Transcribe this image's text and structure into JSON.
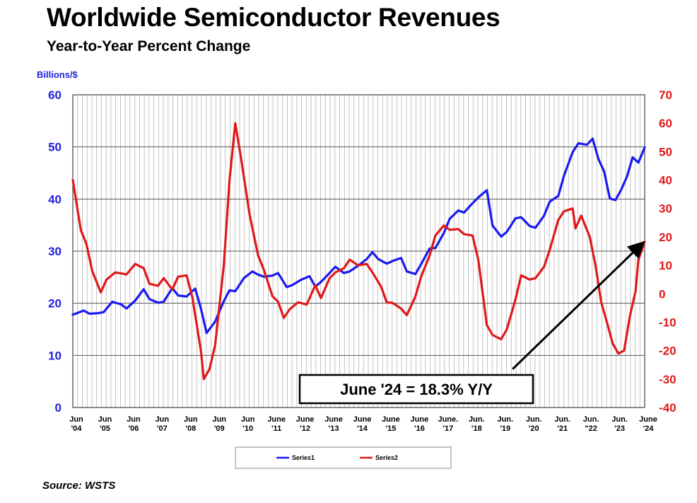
{
  "header": {
    "title": "Worldwide Semiconductor Revenues",
    "subtitle": "Year-to-Year Percent Change"
  },
  "footer": {
    "source": "Source: WSTS"
  },
  "chart_data": {
    "type": "line",
    "title": "Worldwide Semiconductor Revenues",
    "subtitle": "Year-to-Year Percent Change",
    "y_left_label": "Billions/$",
    "y_left_lim": [
      0,
      60
    ],
    "y_left_ticks": [
      0,
      10,
      20,
      30,
      40,
      50,
      60
    ],
    "y_right_lim": [
      -40,
      70
    ],
    "y_right_ticks": [
      -40,
      -30,
      -20,
      -10,
      0,
      10,
      20,
      30,
      40,
      50,
      60,
      70
    ],
    "x_lim": [
      2004.42,
      2024.42
    ],
    "x_tick_labels": [
      {
        "t": 2004.42,
        "top": "Jun",
        "bottom": "'04"
      },
      {
        "t": 2005.42,
        "top": "Jun",
        "bottom": "'05"
      },
      {
        "t": 2006.42,
        "top": "Jun",
        "bottom": "'06"
      },
      {
        "t": 2007.42,
        "top": "Jun",
        "bottom": "'07"
      },
      {
        "t": 2008.42,
        "top": "Jun",
        "bottom": "'08"
      },
      {
        "t": 2009.42,
        "top": "Jun",
        "bottom": "'09"
      },
      {
        "t": 2010.42,
        "top": "Jun",
        "bottom": "'10"
      },
      {
        "t": 2011.42,
        "top": "June",
        "bottom": "'11"
      },
      {
        "t": 2012.42,
        "top": "June",
        "bottom": "'12"
      },
      {
        "t": 2013.42,
        "top": "June",
        "bottom": "'13"
      },
      {
        "t": 2014.42,
        "top": "June",
        "bottom": "'14"
      },
      {
        "t": 2015.42,
        "top": "June",
        "bottom": "'15"
      },
      {
        "t": 2016.42,
        "top": "June",
        "bottom": "'16"
      },
      {
        "t": 2017.42,
        "top": "June.",
        "bottom": "'17"
      },
      {
        "t": 2018.42,
        "top": "Jun.",
        "bottom": "'18"
      },
      {
        "t": 2019.42,
        "top": "Jun.",
        "bottom": "'19"
      },
      {
        "t": 2020.42,
        "top": "Jun.",
        "bottom": "'20"
      },
      {
        "t": 2021.42,
        "top": "Jun.",
        "bottom": "'21"
      },
      {
        "t": 2022.42,
        "top": "Jun.",
        "bottom": "\"22"
      },
      {
        "t": 2023.42,
        "top": "Jun.",
        "bottom": "'23"
      },
      {
        "t": 2024.42,
        "top": "June",
        "bottom": "'24"
      }
    ],
    "grid": "horizontal and vertical",
    "legend_position": "bottom",
    "series": [
      {
        "name": "Series1",
        "axis": "left",
        "color": "#1a1af0",
        "points": [
          [
            2004.42,
            17.8
          ],
          [
            2004.8,
            18.6
          ],
          [
            2005.0,
            18.0
          ],
          [
            2005.3,
            18.1
          ],
          [
            2005.5,
            18.3
          ],
          [
            2005.8,
            20.3
          ],
          [
            2006.1,
            19.8
          ],
          [
            2006.3,
            19.0
          ],
          [
            2006.6,
            20.5
          ],
          [
            2006.9,
            22.7
          ],
          [
            2007.1,
            20.8
          ],
          [
            2007.4,
            20.1
          ],
          [
            2007.6,
            20.3
          ],
          [
            2007.9,
            22.9
          ],
          [
            2008.1,
            21.5
          ],
          [
            2008.4,
            21.3
          ],
          [
            2008.7,
            22.8
          ],
          [
            2008.9,
            19.0
          ],
          [
            2009.1,
            14.3
          ],
          [
            2009.4,
            16.5
          ],
          [
            2009.7,
            20.4
          ],
          [
            2009.9,
            22.5
          ],
          [
            2010.1,
            22.3
          ],
          [
            2010.4,
            24.8
          ],
          [
            2010.7,
            26.1
          ],
          [
            2010.9,
            25.5
          ],
          [
            2011.1,
            25.1
          ],
          [
            2011.4,
            25.3
          ],
          [
            2011.6,
            25.8
          ],
          [
            2011.9,
            23.1
          ],
          [
            2012.1,
            23.5
          ],
          [
            2012.4,
            24.5
          ],
          [
            2012.7,
            25.2
          ],
          [
            2012.9,
            23.2
          ],
          [
            2013.1,
            24.1
          ],
          [
            2013.4,
            25.8
          ],
          [
            2013.6,
            27.0
          ],
          [
            2013.9,
            25.8
          ],
          [
            2014.1,
            26.1
          ],
          [
            2014.4,
            27.2
          ],
          [
            2014.7,
            28.5
          ],
          [
            2014.9,
            29.8
          ],
          [
            2015.1,
            28.5
          ],
          [
            2015.4,
            27.6
          ],
          [
            2015.6,
            28.1
          ],
          [
            2015.9,
            28.7
          ],
          [
            2016.1,
            26.1
          ],
          [
            2016.4,
            25.6
          ],
          [
            2016.6,
            27.5
          ],
          [
            2016.9,
            30.5
          ],
          [
            2017.1,
            30.6
          ],
          [
            2017.4,
            33.5
          ],
          [
            2017.6,
            36.2
          ],
          [
            2017.9,
            37.8
          ],
          [
            2018.1,
            37.4
          ],
          [
            2018.4,
            39.2
          ],
          [
            2018.6,
            40.3
          ],
          [
            2018.9,
            41.7
          ],
          [
            2019.1,
            34.9
          ],
          [
            2019.4,
            32.8
          ],
          [
            2019.6,
            33.7
          ],
          [
            2019.9,
            36.3
          ],
          [
            2020.1,
            36.5
          ],
          [
            2020.4,
            34.8
          ],
          [
            2020.6,
            34.5
          ],
          [
            2020.9,
            36.8
          ],
          [
            2021.1,
            39.5
          ],
          [
            2021.4,
            40.6
          ],
          [
            2021.6,
            44.5
          ],
          [
            2021.9,
            49.0
          ],
          [
            2022.1,
            50.7
          ],
          [
            2022.4,
            50.4
          ],
          [
            2022.6,
            51.6
          ],
          [
            2022.8,
            47.7
          ],
          [
            2023.0,
            45.3
          ],
          [
            2023.2,
            40.1
          ],
          [
            2023.4,
            39.8
          ],
          [
            2023.6,
            41.8
          ],
          [
            2023.8,
            44.3
          ],
          [
            2024.0,
            48.0
          ],
          [
            2024.2,
            47.0
          ],
          [
            2024.42,
            49.9
          ]
        ]
      },
      {
        "name": "Series2",
        "axis": "right",
        "color": "#e01818",
        "points": [
          [
            2004.42,
            40.0
          ],
          [
            2004.7,
            22.5
          ],
          [
            2004.9,
            17.4
          ],
          [
            2005.1,
            8.0
          ],
          [
            2005.4,
            0.5
          ],
          [
            2005.6,
            5.0
          ],
          [
            2005.9,
            7.5
          ],
          [
            2006.1,
            7.2
          ],
          [
            2006.3,
            6.8
          ],
          [
            2006.6,
            10.5
          ],
          [
            2006.9,
            9.0
          ],
          [
            2007.1,
            3.5
          ],
          [
            2007.4,
            2.8
          ],
          [
            2007.6,
            5.5
          ],
          [
            2007.9,
            1.5
          ],
          [
            2008.1,
            6.0
          ],
          [
            2008.4,
            6.5
          ],
          [
            2008.6,
            -1.2
          ],
          [
            2008.9,
            -20.0
          ],
          [
            2009.0,
            -30.0
          ],
          [
            2009.2,
            -26.5
          ],
          [
            2009.4,
            -18.0
          ],
          [
            2009.7,
            10.0
          ],
          [
            2009.9,
            40.0
          ],
          [
            2010.1,
            60.0
          ],
          [
            2010.3,
            48.0
          ],
          [
            2010.6,
            28.0
          ],
          [
            2010.9,
            13.5
          ],
          [
            2011.1,
            8.5
          ],
          [
            2011.4,
            -0.8
          ],
          [
            2011.6,
            -2.8
          ],
          [
            2011.8,
            -8.5
          ],
          [
            2012.0,
            -5.5
          ],
          [
            2012.3,
            -3.0
          ],
          [
            2012.6,
            -3.8
          ],
          [
            2012.9,
            3.0
          ],
          [
            2013.1,
            -1.5
          ],
          [
            2013.4,
            5.5
          ],
          [
            2013.6,
            7.5
          ],
          [
            2013.9,
            9.0
          ],
          [
            2014.1,
            12.0
          ],
          [
            2014.4,
            10.0
          ],
          [
            2014.7,
            10.5
          ],
          [
            2014.9,
            7.5
          ],
          [
            2015.2,
            2.5
          ],
          [
            2015.4,
            -3.0
          ],
          [
            2015.6,
            -3.2
          ],
          [
            2015.9,
            -5.2
          ],
          [
            2016.1,
            -7.5
          ],
          [
            2016.4,
            -1.0
          ],
          [
            2016.6,
            6.0
          ],
          [
            2016.9,
            13.5
          ],
          [
            2017.1,
            20.5
          ],
          [
            2017.4,
            24.0
          ],
          [
            2017.6,
            22.5
          ],
          [
            2017.9,
            22.8
          ],
          [
            2018.1,
            21.0
          ],
          [
            2018.4,
            20.5
          ],
          [
            2018.6,
            12.0
          ],
          [
            2018.9,
            -11.0
          ],
          [
            2019.1,
            -14.5
          ],
          [
            2019.4,
            -16.0
          ],
          [
            2019.6,
            -12.5
          ],
          [
            2019.9,
            -2.0
          ],
          [
            2020.1,
            6.5
          ],
          [
            2020.4,
            5.0
          ],
          [
            2020.6,
            5.5
          ],
          [
            2020.9,
            9.5
          ],
          [
            2021.1,
            15.5
          ],
          [
            2021.4,
            26.0
          ],
          [
            2021.6,
            29.0
          ],
          [
            2021.9,
            30.0
          ],
          [
            2022.0,
            23.0
          ],
          [
            2022.2,
            27.5
          ],
          [
            2022.5,
            20.0
          ],
          [
            2022.7,
            10.0
          ],
          [
            2022.9,
            -3.0
          ],
          [
            2023.1,
            -10.0
          ],
          [
            2023.3,
            -17.5
          ],
          [
            2023.5,
            -21.0
          ],
          [
            2023.7,
            -20.0
          ],
          [
            2023.9,
            -8.0
          ],
          [
            2024.1,
            1.0
          ],
          [
            2024.2,
            12.0
          ],
          [
            2024.42,
            18.3
          ]
        ]
      }
    ],
    "legend": [
      {
        "label": "Series1",
        "color": "#1a1af0"
      },
      {
        "label": "Series2",
        "color": "#e01818"
      }
    ],
    "annotation": {
      "text": "June '24 = 18.3% Y/Y",
      "arrow_from": {
        "t": 2019.8,
        "axis": "right",
        "value": -26.5
      },
      "arrow_to": {
        "t": 2024.42,
        "axis": "right",
        "value": 18.3
      }
    }
  }
}
